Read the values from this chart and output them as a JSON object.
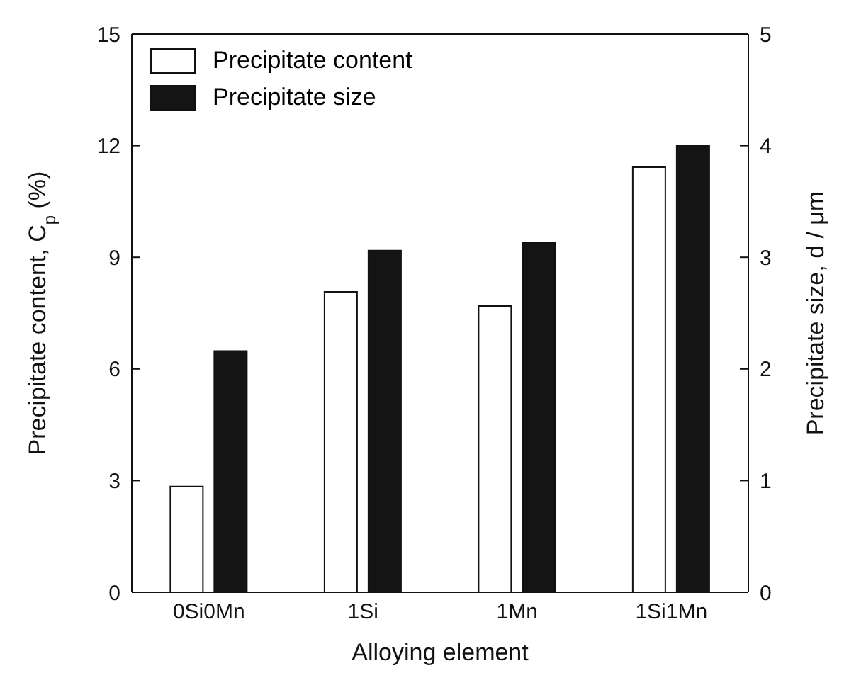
{
  "chart_data": {
    "type": "bar",
    "xlabel": "Alloying element",
    "ylabel": "Precipitate content, C$_{p}$ (%)",
    "y2label": "Precipitate size, d / μm",
    "categories": [
      "0Si0Mn",
      "1Si",
      "1Mn",
      "1Si1Mn"
    ],
    "series": [
      {
        "name": "Precipitate content",
        "color": "#ffffff",
        "values": [
          2.84,
          8.07,
          7.69,
          11.42
        ]
      },
      {
        "name": "Precipitate size",
        "color": "#141414",
        "axis": "y2",
        "values": [
          2.16,
          3.06,
          3.13,
          4.0
        ]
      }
    ],
    "ylim": [
      0,
      15
    ],
    "yticks": [
      0,
      3,
      6,
      9,
      12,
      15
    ],
    "y2lim": [
      0,
      5
    ],
    "y2ticks": [
      0,
      1,
      2,
      3,
      4,
      5
    ],
    "grid": false,
    "legend": "top left"
  }
}
